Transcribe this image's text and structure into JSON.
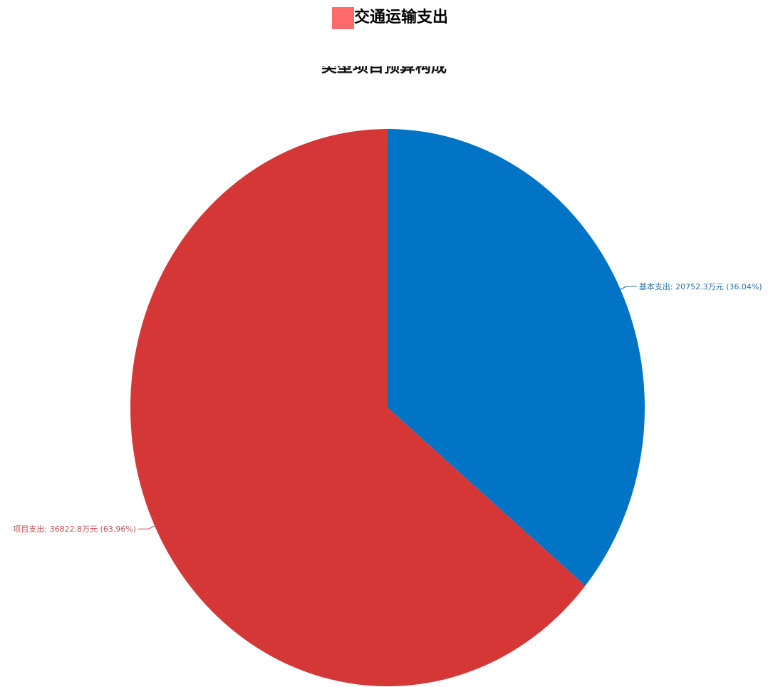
{
  "legend": {
    "label": "交通运输支出",
    "color": "#ff6b6b"
  },
  "subtitle": "类型项目预算构成",
  "chart_data": {
    "type": "pie",
    "title": "",
    "series_name": "交通运输支出",
    "slices": [
      {
        "name": "基本支出",
        "value": 20752.3,
        "unit": "万元",
        "percent": 36.04,
        "label": "基本支出: 20752.3万元 (36.04%)",
        "color": "#0174c6",
        "label_color": "#2a6fa8"
      },
      {
        "name": "项目支出",
        "value": 36822.8,
        "unit": "万元",
        "percent": 63.96,
        "label": "项目支出: 36822.8万元 (63.96%)",
        "color": "#d43736",
        "label_color": "#c0504d"
      }
    ],
    "start_angle_deg": 90,
    "direction": "clockwise"
  }
}
